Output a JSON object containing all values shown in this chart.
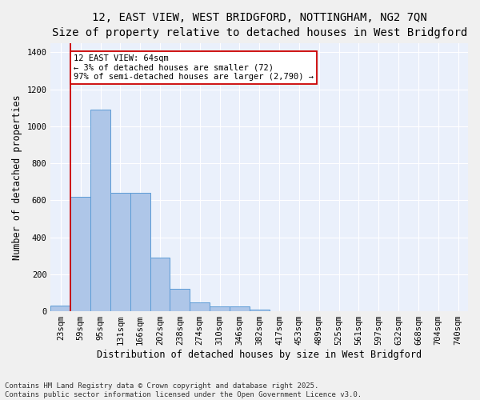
{
  "title_line1": "12, EAST VIEW, WEST BRIDGFORD, NOTTINGHAM, NG2 7QN",
  "title_line2": "Size of property relative to detached houses in West Bridgford",
  "xlabel": "Distribution of detached houses by size in West Bridgford",
  "ylabel": "Number of detached properties",
  "categories": [
    "23sqm",
    "59sqm",
    "95sqm",
    "131sqm",
    "166sqm",
    "202sqm",
    "238sqm",
    "274sqm",
    "310sqm",
    "346sqm",
    "382sqm",
    "417sqm",
    "453sqm",
    "489sqm",
    "525sqm",
    "561sqm",
    "597sqm",
    "632sqm",
    "668sqm",
    "704sqm",
    "740sqm"
  ],
  "bar_values": [
    30,
    620,
    1090,
    640,
    640,
    290,
    120,
    50,
    25,
    25,
    10,
    0,
    0,
    0,
    0,
    0,
    0,
    0,
    0,
    0,
    0
  ],
  "bar_color": "#aec6e8",
  "bar_edge_color": "#5b9bd5",
  "vline_color": "#cc0000",
  "annotation_text": "12 EAST VIEW: 64sqm\n← 3% of detached houses are smaller (72)\n97% of semi-detached houses are larger (2,790) →",
  "annotation_box_color": "#ffffff",
  "annotation_box_edge": "#cc0000",
  "ylim": [
    0,
    1450
  ],
  "yticks": [
    0,
    200,
    400,
    600,
    800,
    1000,
    1200,
    1400
  ],
  "bg_color": "#eaf0fb",
  "fig_bg_color": "#f0f0f0",
  "grid_color": "#ffffff",
  "footer_line1": "Contains HM Land Registry data © Crown copyright and database right 2025.",
  "footer_line2": "Contains public sector information licensed under the Open Government Licence v3.0.",
  "title_fontsize": 10,
  "subtitle_fontsize": 9,
  "axis_label_fontsize": 8.5,
  "tick_fontsize": 7.5,
  "annotation_fontsize": 7.5,
  "footer_fontsize": 6.5
}
